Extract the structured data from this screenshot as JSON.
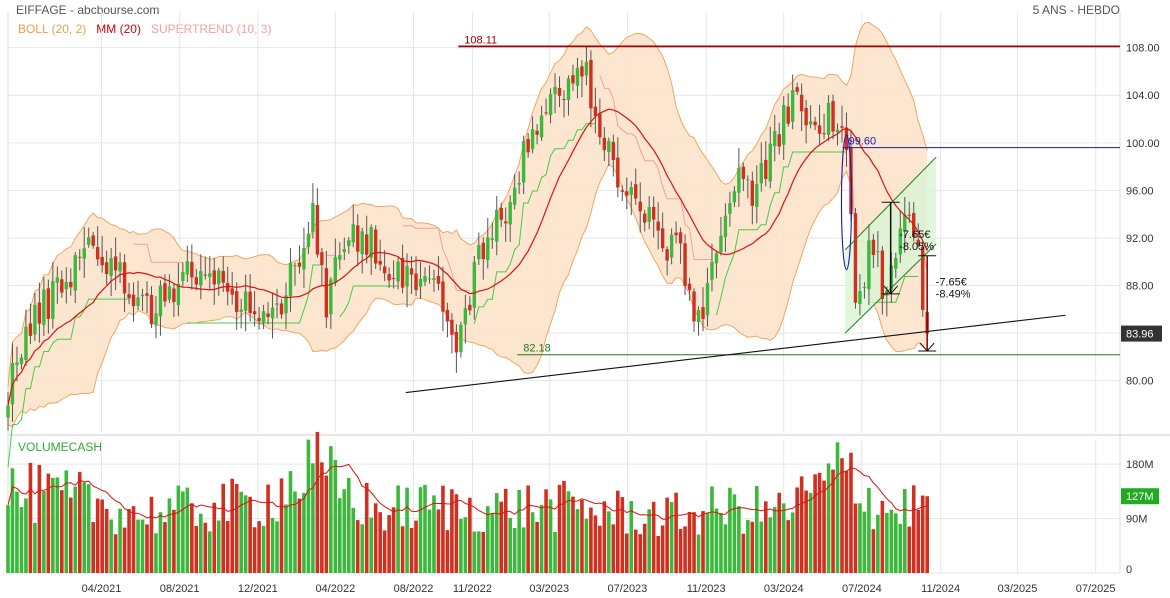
{
  "header": {
    "title": "EIFFAGE - abcbourse.com",
    "period": "5 ANS - HEBDO"
  },
  "legend": [
    {
      "label": "BOLL (20, 2)",
      "color": "#e8a14a"
    },
    {
      "label": "MM (20)",
      "color": "#cc0000"
    },
    {
      "label": "SUPERTREND (10, 3)",
      "color": "#f4a0a0"
    }
  ],
  "colors": {
    "up": "#3cb83c",
    "down": "#d03020",
    "boll_fill": "#fbe2c8",
    "boll_line": "#eea860",
    "ma": "#dd1111",
    "supertrend_up": "#44cc44",
    "supertrend_down": "#f0a0a0",
    "resistance": "#a00000",
    "support": "#227722",
    "level_blue": "#1a1aa0",
    "price_tag": "#333333",
    "volume_tag": "#22aa22",
    "channel_fill": "#d9f5d5"
  },
  "chart_data": [
    {
      "type": "candlestick",
      "name": "price",
      "ylim": [
        75.6,
        111
      ],
      "yticks": [
        80,
        84,
        88,
        92,
        96,
        100,
        104,
        108
      ],
      "ytick_labels": [
        "80.00",
        "84.00",
        "88.00",
        "92.00",
        "96.00",
        "100.00",
        "104.00",
        "108.00"
      ],
      "xlim": [
        "2020-11-06",
        "2025-08-08"
      ],
      "xticks": [
        "2021-04-01",
        "2021-08-01",
        "2021-12-01",
        "2022-04-01",
        "2022-08-01",
        "2022-11-01",
        "2023-03-01",
        "2023-07-01",
        "2023-11-01",
        "2024-03-01",
        "2024-07-01",
        "2024-11-01",
        "2025-03-01",
        "2025-07-01"
      ],
      "xtick_labels": [
        "04/2021",
        "08/2021",
        "12/2021",
        "04/2022",
        "08/2022",
        "11/2022",
        "03/2023",
        "07/2023",
        "11/2023",
        "03/2024",
        "07/2024",
        "11/2024",
        "03/2025",
        "07/2025"
      ],
      "anchors": [
        [
          "2020-11-06",
          79.5
        ],
        [
          "2020-12-01",
          83.5
        ],
        [
          "2021-01-05",
          86.5
        ],
        [
          "2021-02-15",
          89.5
        ],
        [
          "2021-03-15",
          92.0
        ],
        [
          "2021-04-15",
          89.5
        ],
        [
          "2021-05-20",
          87.5
        ],
        [
          "2021-06-25",
          86.0
        ],
        [
          "2021-08-10",
          89.5
        ],
        [
          "2021-09-25",
          88.0
        ],
        [
          "2021-11-20",
          86.5
        ],
        [
          "2021-12-20",
          84.5
        ],
        [
          "2022-01-20",
          89.0
        ],
        [
          "2022-02-25",
          94.0
        ],
        [
          "2022-03-18",
          85.5
        ],
        [
          "2022-04-08",
          91.0
        ],
        [
          "2022-05-15",
          92.5
        ],
        [
          "2022-06-25",
          89.5
        ],
        [
          "2022-08-05",
          89.0
        ],
        [
          "2022-09-15",
          87.5
        ],
        [
          "2022-10-05",
          81.5
        ],
        [
          "2022-11-05",
          89.5
        ],
        [
          "2022-12-10",
          93.0
        ],
        [
          "2023-01-15",
          98.0
        ],
        [
          "2023-02-15",
          102.0
        ],
        [
          "2023-03-20",
          104.5
        ],
        [
          "2023-04-25",
          106.0
        ],
        [
          "2023-05-20",
          101.5
        ],
        [
          "2023-06-20",
          96.5
        ],
        [
          "2023-07-25",
          94.0
        ],
        [
          "2023-08-25",
          92.0
        ],
        [
          "2023-09-25",
          90.0
        ],
        [
          "2023-10-25",
          84.0
        ],
        [
          "2023-11-15",
          92.0
        ],
        [
          "2023-12-20",
          96.5
        ],
        [
          "2024-01-20",
          96.0
        ],
        [
          "2024-02-25",
          101.0
        ],
        [
          "2024-03-20",
          104.0
        ],
        [
          "2024-04-15",
          100.5
        ],
        [
          "2024-05-10",
          102.5
        ],
        [
          "2024-06-07",
          99.5
        ],
        [
          "2024-06-21",
          85.5
        ],
        [
          "2024-07-15",
          91.0
        ],
        [
          "2024-08-05",
          88.0
        ],
        [
          "2024-09-05",
          94.5
        ],
        [
          "2024-09-27",
          91.0
        ],
        [
          "2024-10-11",
          83.96
        ]
      ],
      "ma_length": 20,
      "boll_std": 2,
      "last_price": 83.96,
      "last_price_label": "83.96",
      "horizontal_levels": [
        {
          "value": 108.11,
          "label": "108.11",
          "from": "2022-10-10",
          "role": "resistance"
        },
        {
          "value": 99.6,
          "label": "99.60",
          "from": "2024-06-01",
          "role": "level"
        },
        {
          "value": 82.18,
          "label": "82.18",
          "from": "2023-01-10",
          "role": "support"
        }
      ],
      "trendlines": [
        {
          "from": [
            "2022-07-20",
            79.0
          ],
          "to": [
            "2025-05-15",
            85.5
          ]
        },
        {
          "from": [
            "2024-06-05",
            84.0
          ],
          "to": [
            "2024-10-25",
            91.5
          ]
        },
        {
          "from": [
            "2024-06-05",
            91.0
          ],
          "to": [
            "2024-10-25",
            98.8
          ]
        }
      ],
      "annotations": [
        {
          "lines": [
            "-7.65€",
            "-8.05%"
          ],
          "at": [
            "2024-08-22",
            92.0
          ],
          "arrow_from": 95.0,
          "arrow_to": 87.3,
          "arrow_date": "2024-08-15"
        },
        {
          "lines": [
            "-7.65€",
            "-8.49%"
          ],
          "at": [
            "2024-10-18",
            88.0
          ],
          "arrow_from": 90.5,
          "arrow_to": 82.5,
          "arrow_date": "2024-10-11"
        }
      ]
    },
    {
      "type": "bar",
      "name": "volume",
      "title": "VOLUMECASH",
      "ylim": [
        0,
        220
      ],
      "yticks": [
        0,
        90,
        180
      ],
      "ytick_labels": [
        "0",
        "90M",
        "180M"
      ],
      "last_value_label": "127M",
      "anchors": [
        [
          "2020-11-06",
          145
        ],
        [
          "2021-03-01",
          130
        ],
        [
          "2021-06-01",
          105
        ],
        [
          "2021-09-01",
          115
        ],
        [
          "2021-12-01",
          125
        ],
        [
          "2022-03-01",
          185
        ],
        [
          "2022-06-01",
          110
        ],
        [
          "2022-09-01",
          120
        ],
        [
          "2022-12-01",
          115
        ],
        [
          "2023-03-01",
          120
        ],
        [
          "2023-06-01",
          110
        ],
        [
          "2023-09-01",
          100
        ],
        [
          "2023-12-01",
          115
        ],
        [
          "2024-03-01",
          110
        ],
        [
          "2024-06-10",
          190
        ],
        [
          "2024-07-15",
          130
        ],
        [
          "2024-08-15",
          110
        ],
        [
          "2024-10-11",
          127
        ]
      ]
    }
  ]
}
